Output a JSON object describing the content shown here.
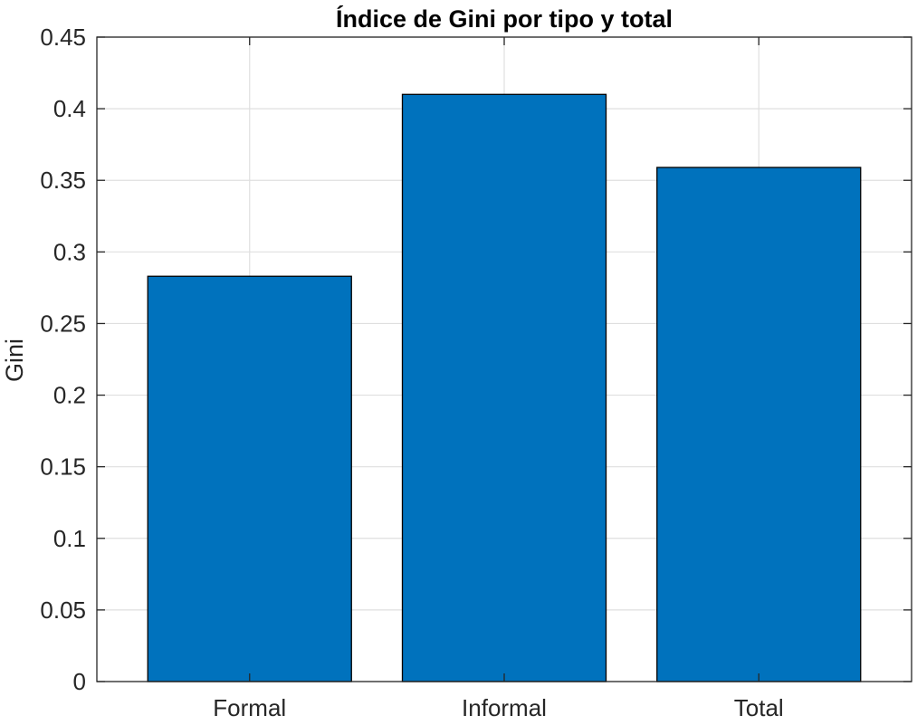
{
  "chart_data": {
    "type": "bar",
    "title": "Índice de Gini por tipo y total",
    "xlabel": "",
    "ylabel": "Gini",
    "categories": [
      "Formal",
      "Informal",
      "Total"
    ],
    "values": [
      0.283,
      0.41,
      0.359
    ],
    "ylim": [
      0,
      0.45
    ],
    "xlim": [
      0.4,
      3.6
    ],
    "yticks": [
      0,
      0.05,
      0.1,
      0.15,
      0.2,
      0.25,
      0.3,
      0.35,
      0.4,
      0.45
    ],
    "ytick_labels": [
      "0",
      "0.05",
      "0.1",
      "0.15",
      "0.2",
      "0.25",
      "0.3",
      "0.35",
      "0.4",
      "0.45"
    ],
    "grid": true,
    "box": true,
    "bar_color": "#0072BD",
    "bar_edge_color": "#000000",
    "grid_color": "#dfdfdf",
    "axis_color": "#262626"
  }
}
